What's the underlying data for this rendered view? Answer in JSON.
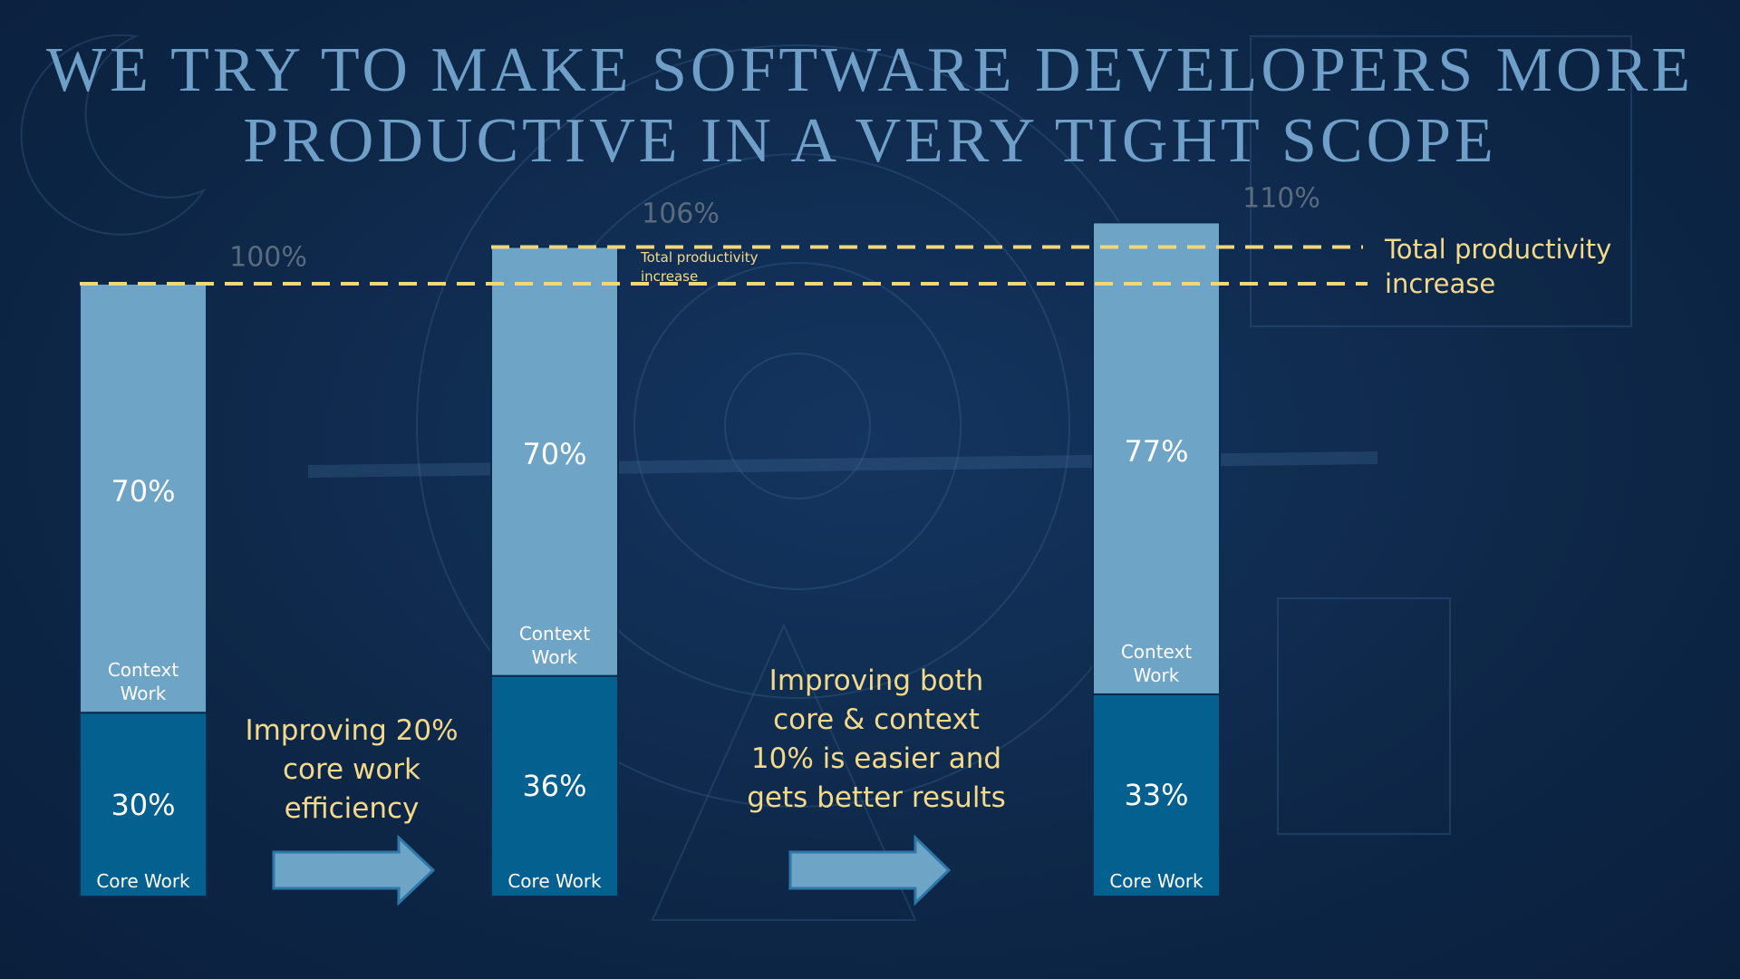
{
  "chart_data": {
    "type": "stacked-bar",
    "title": [
      "WE TRY TO MAKE SOFTWARE DEVELOPERS MORE",
      "PRODUCTIVE IN A VERY TIGHT SCOPE"
    ],
    "categories": [
      null,
      null,
      null
    ],
    "series": [
      {
        "name": "Core Work",
        "color": "#03608f",
        "values": [
          30,
          36,
          33
        ],
        "value_labels": [
          "30%",
          "36%",
          "33%"
        ]
      },
      {
        "name": "Context Work",
        "color": "#6ea4c6",
        "values": [
          70,
          70,
          77
        ],
        "value_labels": [
          "70%",
          "70%",
          "77%"
        ]
      }
    ],
    "totals": [
      100,
      106,
      110
    ],
    "total_labels": [
      "100%",
      "106%",
      "110%"
    ],
    "annotations": [
      "Total productivity increase",
      "Total productivity increase",
      "Improving 20% core work efficiency",
      "Improving both core & context 10% is easier and gets better results"
    ]
  }
}
